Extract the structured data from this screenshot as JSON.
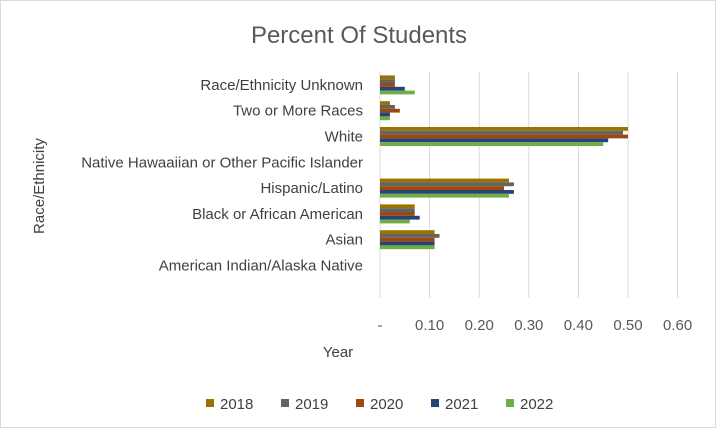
{
  "chart_data": {
    "type": "bar",
    "orientation": "horizontal",
    "title": "Percent Of Students",
    "xlabel": "Year",
    "ylabel": "Race/Ethnicity",
    "xlim": [
      0,
      0.6
    ],
    "xticks": [
      0,
      0.1,
      0.2,
      0.3,
      0.4,
      0.5,
      0.6
    ],
    "xtick_labels": [
      "-",
      "0.10",
      "0.20",
      "0.30",
      "0.40",
      "0.50",
      "0.60"
    ],
    "grid": "vertical",
    "legend_position": "bottom",
    "categories": [
      "Race/Ethnicity Unknown",
      "Two or More Races",
      "White",
      "Native Hawaaiian or Other Pacific Islander",
      "Hispanic/Latino",
      "Black or African American",
      "Asian",
      "American Indian/Alaska Native"
    ],
    "series": [
      {
        "name": "2018",
        "color": "#997300",
        "values": [
          0.03,
          0.02,
          0.5,
          0.0,
          0.26,
          0.07,
          0.11,
          0.0
        ]
      },
      {
        "name": "2019",
        "color": "#636363",
        "values": [
          0.03,
          0.03,
          0.49,
          0.0,
          0.27,
          0.07,
          0.12,
          0.0
        ]
      },
      {
        "name": "2020",
        "color": "#9e480e",
        "values": [
          0.03,
          0.04,
          0.5,
          0.0,
          0.25,
          0.07,
          0.11,
          0.0
        ]
      },
      {
        "name": "2021",
        "color": "#264478",
        "values": [
          0.05,
          0.02,
          0.46,
          0.0,
          0.27,
          0.08,
          0.11,
          0.0
        ]
      },
      {
        "name": "2022",
        "color": "#70ad47",
        "values": [
          0.07,
          0.02,
          0.45,
          0.0,
          0.26,
          0.06,
          0.11,
          0.0
        ]
      }
    ]
  }
}
